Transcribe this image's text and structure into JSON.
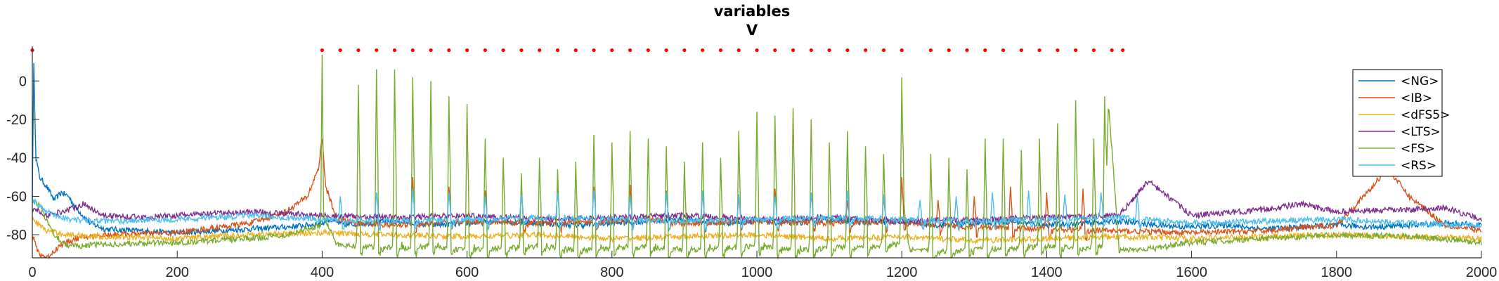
{
  "chart_data": {
    "type": "line",
    "title": "variables",
    "subtitle": "V",
    "xlabel": "",
    "ylabel": "",
    "xlim": [
      0,
      2000
    ],
    "ylim": [
      -92,
      18
    ],
    "xticks": [
      0,
      200,
      400,
      600,
      800,
      1000,
      1200,
      1400,
      1600,
      1800,
      2000
    ],
    "yticks": [
      -80,
      -60,
      -40,
      -20,
      0
    ],
    "grid": false,
    "legend_position": "top-right",
    "marker_y": 16,
    "marker_x": [
      0,
      400,
      425,
      450,
      475,
      500,
      525,
      550,
      575,
      600,
      625,
      650,
      675,
      700,
      725,
      750,
      775,
      800,
      825,
      850,
      875,
      900,
      925,
      950,
      975,
      1000,
      1025,
      1050,
      1075,
      1100,
      1125,
      1150,
      1175,
      1200,
      1240,
      1265,
      1290,
      1315,
      1340,
      1365,
      1390,
      1415,
      1440,
      1465,
      1490,
      1505
    ],
    "marker_color": "#ff0000",
    "series": [
      {
        "name": "<NG>",
        "color": "#0072bd",
        "x": [
          0,
          2,
          5,
          10,
          20,
          30,
          40,
          50,
          60,
          80,
          100,
          150,
          200,
          250,
          300,
          350,
          380,
          400,
          410,
          430,
          460,
          500,
          550,
          600,
          650,
          700,
          750,
          800,
          850,
          900,
          950,
          1000,
          1050,
          1100,
          1150,
          1200,
          1250,
          1300,
          1350,
          1400,
          1450,
          1500,
          1550,
          1600,
          1650,
          1700,
          1750,
          1800,
          1850,
          1900,
          1950,
          2000
        ],
        "values": [
          -60,
          8,
          -40,
          -50,
          -55,
          -62,
          -58,
          -60,
          -66,
          -74,
          -77,
          -78,
          -79,
          -78,
          -77,
          -76,
          -75,
          -74,
          -72,
          -75,
          -74,
          -73,
          -75,
          -74,
          -73,
          -74,
          -75,
          -74,
          -73,
          -72,
          -74,
          -73,
          -74,
          -72,
          -74,
          -73,
          -75,
          -74,
          -73,
          -75,
          -74,
          -73,
          -75,
          -76,
          -75,
          -77,
          -76,
          -75,
          -76,
          -75,
          -74,
          -75
        ]
      },
      {
        "name": "<IB>",
        "color": "#d95319",
        "x": [
          0,
          5,
          10,
          20,
          40,
          60,
          100,
          200,
          300,
          350,
          380,
          395,
          400,
          405,
          420,
          450,
          500,
          550,
          600,
          700,
          800,
          850,
          900,
          1000,
          1100,
          1200,
          1250,
          1300,
          1400,
          1500,
          1600,
          1700,
          1800,
          1850,
          1870,
          1900,
          1950,
          2000
        ],
        "values": [
          -80,
          -86,
          -90,
          -92,
          -85,
          -82,
          -80,
          -79,
          -74,
          -68,
          -60,
          -45,
          -30,
          -55,
          -72,
          -74,
          -75,
          -74,
          -73,
          -74,
          -73,
          -72,
          -74,
          -73,
          -74,
          -73,
          -75,
          -76,
          -77,
          -78,
          -79,
          -78,
          -75,
          -55,
          -45,
          -60,
          -75,
          -78
        ]
      },
      {
        "name": "<dFS5>",
        "color": "#edb120",
        "x": [
          0,
          20,
          50,
          100,
          200,
          300,
          400,
          500,
          600,
          700,
          800,
          900,
          1000,
          1100,
          1200,
          1300,
          1400,
          1500,
          1600,
          1700,
          1800,
          1900,
          2000
        ],
        "values": [
          -72,
          -78,
          -80,
          -81,
          -82,
          -80,
          -79,
          -80,
          -81,
          -80,
          -82,
          -81,
          -80,
          -82,
          -81,
          -83,
          -82,
          -81,
          -82,
          -81,
          -80,
          -81,
          -82
        ]
      },
      {
        "name": "<LTS>",
        "color": "#7e2f8e",
        "x": [
          0,
          20,
          50,
          70,
          100,
          150,
          200,
          250,
          300,
          400,
          500,
          600,
          700,
          800,
          900,
          1000,
          1100,
          1200,
          1300,
          1400,
          1500,
          1540,
          1600,
          1700,
          1750,
          1800,
          1900,
          1950,
          2000
        ],
        "values": [
          -66,
          -70,
          -67,
          -64,
          -70,
          -71,
          -70,
          -69,
          -68,
          -70,
          -71,
          -70,
          -72,
          -71,
          -70,
          -72,
          -71,
          -73,
          -72,
          -71,
          -70,
          -52,
          -70,
          -67,
          -64,
          -68,
          -67,
          -66,
          -72
        ]
      },
      {
        "name": "<FS>",
        "color": "#77ac30",
        "x": [
          0,
          10,
          30,
          50,
          100,
          200,
          300,
          350,
          398,
          400,
          402,
          420,
          450,
          500,
          550,
          600,
          650,
          700,
          750,
          800,
          850,
          900,
          950,
          1000,
          1050,
          1100,
          1150,
          1200,
          1203,
          1210,
          1250,
          1300,
          1350,
          1400,
          1450,
          1480,
          1485,
          1500,
          1550,
          1600,
          1650,
          1700,
          1800,
          1900,
          2000
        ],
        "values": [
          -62,
          -65,
          -80,
          -86,
          -85,
          -84,
          -82,
          -80,
          -75,
          15,
          -70,
          -85,
          -86,
          -87,
          -86,
          -88,
          -87,
          -86,
          -88,
          -87,
          -86,
          -88,
          -87,
          -86,
          -88,
          -87,
          -86,
          -85,
          -60,
          -88,
          -89,
          -88,
          -87,
          -86,
          -87,
          -85,
          -10,
          -88,
          -87,
          -84,
          -83,
          -82,
          -80,
          -81,
          -84
        ]
      },
      {
        "name": "<RS>",
        "color": "#4dbeee",
        "x": [
          0,
          20,
          50,
          100,
          200,
          300,
          400,
          500,
          600,
          700,
          800,
          900,
          1000,
          1100,
          1200,
          1300,
          1400,
          1500,
          1600,
          1700,
          1800,
          1900,
          2000
        ],
        "values": [
          -62,
          -68,
          -72,
          -73,
          -72,
          -70,
          -72,
          -73,
          -72,
          -71,
          -72,
          -73,
          -72,
          -71,
          -72,
          -73,
          -72,
          -71,
          -74,
          -73,
          -72,
          -74,
          -75
        ]
      }
    ],
    "spikes": [
      {
        "series": "<FS>",
        "x": [
          450,
          475,
          500,
          525,
          550,
          575,
          600,
          625,
          650,
          675,
          700,
          725,
          750,
          775,
          800,
          825,
          850,
          875,
          900,
          925,
          950,
          975,
          1000,
          1025,
          1050,
          1075,
          1100,
          1125,
          1150,
          1175,
          1200,
          1240,
          1265,
          1290,
          1315,
          1340,
          1365,
          1390,
          1415,
          1440,
          1465,
          1480
        ],
        "peaks": [
          -2,
          6,
          6,
          2,
          0,
          -8,
          -12,
          -30,
          -40,
          -48,
          -40,
          -46,
          -42,
          -28,
          -32,
          -26,
          -30,
          -34,
          -42,
          -32,
          -40,
          -26,
          -16,
          -18,
          -14,
          -20,
          -32,
          -26,
          -34,
          -38,
          2,
          -38,
          -40,
          -46,
          -30,
          -30,
          -36,
          -30,
          -22,
          -10,
          -30,
          -8
        ]
      },
      {
        "series": "<IB>",
        "x": [
          525,
          575,
          625,
          675,
          725,
          775,
          825,
          875,
          925,
          975,
          1025,
          1075,
          1125,
          1175,
          1200,
          1250,
          1300,
          1350,
          1400,
          1450
        ],
        "peaks": [
          -50,
          -55,
          -57,
          -58,
          -56,
          -55,
          -54,
          -57,
          -58,
          -60,
          -56,
          -58,
          -62,
          -60,
          -50,
          -62,
          -60,
          -55,
          -58,
          -56
        ]
      },
      {
        "series": "<RS>",
        "x": [
          425,
          475,
          525,
          575,
          625,
          675,
          725,
          775,
          825,
          875,
          925,
          975,
          1025,
          1075,
          1125,
          1175,
          1225,
          1275,
          1325,
          1375,
          1425,
          1475,
          1525
        ],
        "peaks": [
          -60,
          -58,
          -56,
          -58,
          -60,
          -59,
          -58,
          -57,
          -60,
          -58,
          -57,
          -59,
          -60,
          -58,
          -57,
          -59,
          -62,
          -60,
          -58,
          -57,
          -59,
          -58,
          -60
        ]
      }
    ]
  }
}
